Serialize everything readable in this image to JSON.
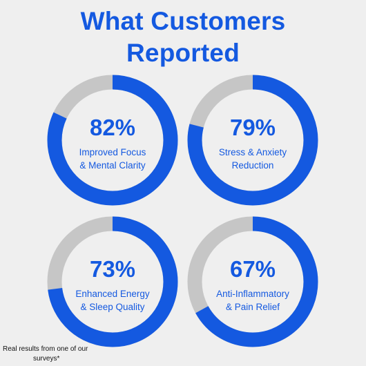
{
  "title": {
    "line1": "What Customers",
    "line2": "Reported"
  },
  "colors": {
    "accent": "#1459e0",
    "track": "#c6c6c6",
    "background": "#efefef"
  },
  "chart_data": {
    "type": "donut",
    "title": "What Customers Reported",
    "items": [
      {
        "value": 82,
        "value_label": "82%",
        "label_lines": [
          "Improved Focus",
          "& Mental Clarity"
        ]
      },
      {
        "value": 79,
        "value_label": "79%",
        "label_lines": [
          "Stress & Anxiety",
          "Reduction"
        ]
      },
      {
        "value": 73,
        "value_label": "73%",
        "label_lines": [
          "Enhanced Energy",
          "& Sleep Quality"
        ]
      },
      {
        "value": 67,
        "value_label": "67%",
        "label_lines": [
          "Anti-Inflammatory",
          "& Pain Relief"
        ]
      }
    ]
  },
  "footnote": {
    "line1": "Real results from one of our",
    "line2": "surveys*"
  }
}
